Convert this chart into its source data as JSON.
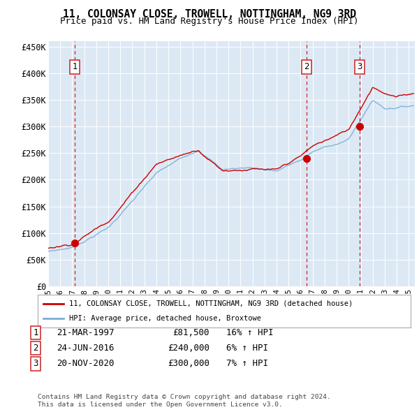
{
  "title": "11, COLONSAY CLOSE, TROWELL, NOTTINGHAM, NG9 3RD",
  "subtitle": "Price paid vs. HM Land Registry's House Price Index (HPI)",
  "plot_bg_color": "#dce9f5",
  "fig_bg_color": "#ffffff",
  "red_line_color": "#cc0000",
  "blue_line_color": "#7aaed6",
  "grid_color": "#ffffff",
  "ylim": [
    0,
    460000
  ],
  "yticks": [
    0,
    50000,
    100000,
    150000,
    200000,
    250000,
    300000,
    350000,
    400000,
    450000
  ],
  "ytick_labels": [
    "£0",
    "£50K",
    "£100K",
    "£150K",
    "£200K",
    "£250K",
    "£300K",
    "£350K",
    "£400K",
    "£450K"
  ],
  "xlim_start": 1995.0,
  "xlim_end": 2025.5,
  "xticks": [
    1995,
    1996,
    1997,
    1998,
    1999,
    2000,
    2001,
    2002,
    2003,
    2004,
    2005,
    2006,
    2007,
    2008,
    2009,
    2010,
    2011,
    2012,
    2013,
    2014,
    2015,
    2016,
    2017,
    2018,
    2019,
    2020,
    2021,
    2022,
    2023,
    2024,
    2025
  ],
  "sale1_date": 1997.22,
  "sale1_label": "1",
  "sale1_price": 81500,
  "sale1_text": "21-MAR-1997",
  "sale1_pct": "16% ↑ HPI",
  "sale2_date": 2016.48,
  "sale2_label": "2",
  "sale2_price": 240000,
  "sale2_text": "24-JUN-2016",
  "sale2_pct": "6% ↑ HPI",
  "sale3_date": 2020.9,
  "sale3_label": "3",
  "sale3_price": 300000,
  "sale3_text": "20-NOV-2020",
  "sale3_pct": "7% ↑ HPI",
  "legend_label_red": "11, COLONSAY CLOSE, TROWELL, NOTTINGHAM, NG9 3RD (detached house)",
  "legend_label_blue": "HPI: Average price, detached house, Broxtowe",
  "footer1": "Contains HM Land Registry data © Crown copyright and database right 2024.",
  "footer2": "This data is licensed under the Open Government Licence v3.0."
}
